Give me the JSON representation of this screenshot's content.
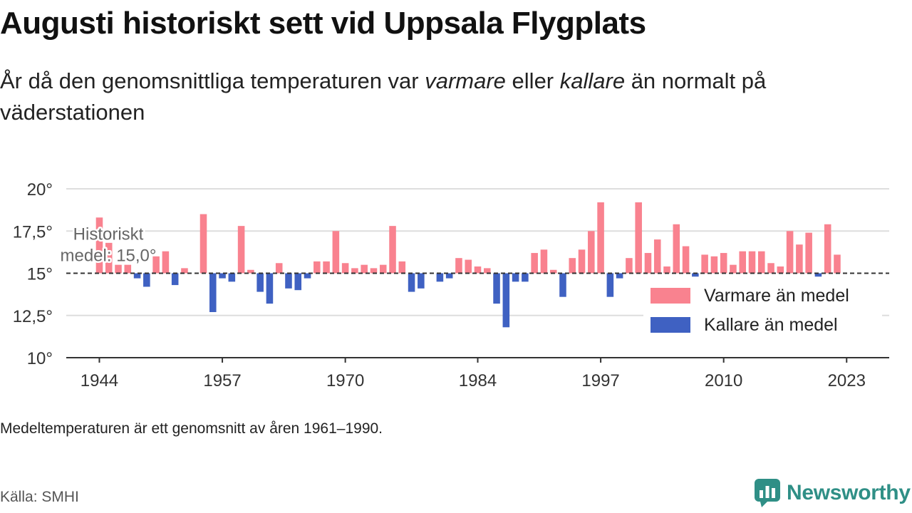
{
  "header": {
    "title": "Augusti historiskt sett vid Uppsala Flygplats",
    "subtitle_parts": [
      "År då den genomsnittliga temperaturen var ",
      "varmare",
      " eller ",
      "kallare",
      " än normalt på väderstationen"
    ]
  },
  "footer": {
    "note": "Medeltemperaturen är ett genomsnitt av åren 1961–1990.",
    "source": "Källa: SMHI",
    "brand": "Newsworthy"
  },
  "colors": {
    "warm": "#f9828f",
    "cold": "#3f61c2",
    "brand": "#2f8f86"
  },
  "chart_data": {
    "type": "bar",
    "baseline": 15.0,
    "baseline_label_lines": [
      "Historiskt",
      "medel: 15,0°"
    ],
    "ylim": [
      10,
      20
    ],
    "y_ticks": [
      10,
      12.5,
      15,
      17.5,
      20
    ],
    "y_tick_labels": [
      "10°",
      "12,5°",
      "15°",
      "17,5°",
      "20°"
    ],
    "x_ticks": [
      1944,
      1957,
      1970,
      1984,
      1997,
      2010,
      2023
    ],
    "x_tick_labels": [
      "1944",
      "1957",
      "1970",
      "1984",
      "1997",
      "2010",
      "2023"
    ],
    "xlim": [
      1940.5,
      2027.5
    ],
    "legend": {
      "position": "right",
      "items": [
        {
          "label": "Varmare än medel",
          "color_key": "warm"
        },
        {
          "label": "Kallare än medel",
          "color_key": "cold"
        }
      ]
    },
    "series": [
      {
        "name": "Varmare än medel",
        "color_key": "warm"
      },
      {
        "name": "Kallare än medel",
        "color_key": "cold"
      }
    ],
    "x": [
      1944,
      1945,
      1946,
      1947,
      1948,
      1949,
      1950,
      1951,
      1952,
      1953,
      1954,
      1955,
      1956,
      1957,
      1958,
      1959,
      1960,
      1961,
      1962,
      1963,
      1964,
      1965,
      1966,
      1967,
      1968,
      1969,
      1970,
      1971,
      1972,
      1973,
      1974,
      1975,
      1976,
      1977,
      1978,
      1979,
      1980,
      1981,
      1982,
      1983,
      1984,
      1985,
      1986,
      1987,
      1988,
      1989,
      1990,
      1991,
      1992,
      1993,
      1994,
      1995,
      1996,
      1997,
      1998,
      1999,
      2000,
      2001,
      2002,
      2003,
      2004,
      2005,
      2006,
      2007,
      2008,
      2009,
      2010,
      2011,
      2012,
      2013,
      2014,
      2015,
      2016,
      2017,
      2018,
      2019,
      2020,
      2021,
      2022,
      2023
    ],
    "values": [
      18.3,
      16.8,
      15.5,
      15.5,
      14.7,
      14.2,
      16.0,
      16.3,
      14.3,
      15.3,
      15.0,
      18.5,
      12.7,
      14.7,
      14.5,
      17.8,
      15.2,
      13.9,
      13.2,
      15.6,
      14.1,
      14.0,
      14.7,
      15.7,
      15.7,
      17.5,
      15.6,
      15.3,
      15.5,
      15.3,
      15.5,
      17.8,
      15.7,
      13.9,
      14.1,
      15.0,
      14.5,
      14.7,
      15.9,
      15.8,
      15.4,
      15.3,
      13.2,
      11.8,
      14.5,
      14.5,
      16.2,
      16.4,
      15.2,
      13.6,
      15.9,
      16.4,
      17.5,
      19.2,
      13.6,
      14.7,
      15.9,
      19.2,
      16.2,
      17.0,
      15.4,
      17.9,
      16.6,
      14.8,
      16.1,
      16.0,
      16.2,
      15.5,
      16.3,
      16.3,
      16.3,
      15.6,
      15.4,
      17.5,
      16.7,
      17.4,
      14.8,
      17.9,
      16.1,
      15.0
    ]
  }
}
